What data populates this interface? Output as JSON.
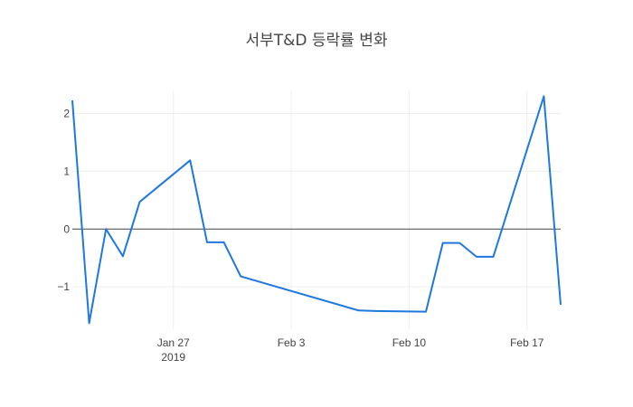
{
  "chart_data": {
    "type": "line",
    "title": "서부T&D 등락률 변화",
    "xlabel": "",
    "ylabel": "",
    "x_range": [
      "2019-01-21",
      "2019-02-19"
    ],
    "ylim": [
      -1.75,
      2.4
    ],
    "grid": true,
    "line_color": "#1f77e0",
    "zero_line_color": "#444444",
    "x_ticks": [
      {
        "date": "2019-01-27",
        "label": "Jan 27",
        "sublabel": "2019"
      },
      {
        "date": "2019-02-03",
        "label": "Feb 3",
        "sublabel": ""
      },
      {
        "date": "2019-02-10",
        "label": "Feb 10",
        "sublabel": ""
      },
      {
        "date": "2019-02-17",
        "label": "Feb 17",
        "sublabel": ""
      }
    ],
    "y_ticks": [
      {
        "value": 2,
        "label": "2"
      },
      {
        "value": 1,
        "label": "1"
      },
      {
        "value": 0,
        "label": "0"
      },
      {
        "value": -1,
        "label": "−1"
      }
    ],
    "series": [
      {
        "x": [
          "2019-01-21",
          "2019-01-22",
          "2019-01-23",
          "2019-01-24",
          "2019-01-25",
          "2019-01-28",
          "2019-01-29",
          "2019-01-30",
          "2019-01-31",
          "2019-02-07",
          "2019-02-08",
          "2019-02-11",
          "2019-02-12",
          "2019-02-13",
          "2019-02-14",
          "2019-02-15",
          "2019-02-18",
          "2019-02-19"
        ],
        "y": [
          2.23,
          -1.63,
          0,
          -0.47,
          0.47,
          1.19,
          -0.23,
          -0.23,
          -0.82,
          -1.41,
          -1.42,
          -1.43,
          -0.24,
          -0.24,
          -0.48,
          -0.48,
          2.3,
          -1.31
        ]
      }
    ]
  }
}
